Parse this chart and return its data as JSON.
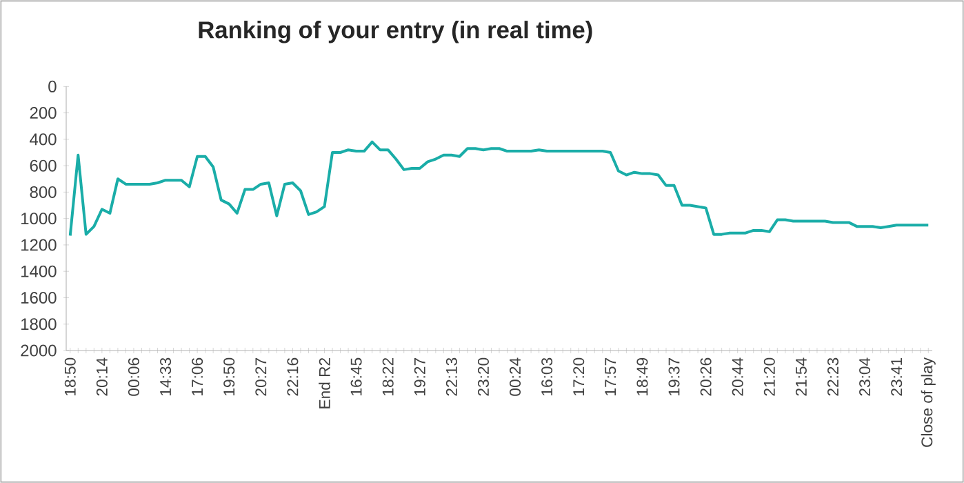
{
  "chart_data": {
    "type": "line",
    "title": "Ranking of your entry (in real time)",
    "categories": [
      "18:50",
      null,
      null,
      null,
      "20:14",
      null,
      null,
      null,
      "00:06",
      null,
      null,
      null,
      "14:33",
      null,
      null,
      null,
      "17:06",
      null,
      null,
      null,
      "19:50",
      null,
      null,
      null,
      "20:27",
      null,
      null,
      null,
      "22:16",
      null,
      null,
      null,
      "End R2",
      null,
      null,
      null,
      "16:45",
      null,
      null,
      null,
      "18:22",
      null,
      null,
      null,
      "19:27",
      null,
      null,
      null,
      "22:13",
      null,
      null,
      null,
      "23:20",
      null,
      null,
      null,
      "00:24",
      null,
      null,
      null,
      "16:03",
      null,
      null,
      null,
      "17:20",
      null,
      null,
      null,
      "17:57",
      null,
      null,
      null,
      "18:49",
      null,
      null,
      null,
      "19:37",
      null,
      null,
      null,
      "20:26",
      null,
      null,
      null,
      "20:44",
      null,
      null,
      null,
      "21:20",
      null,
      null,
      null,
      "21:54",
      null,
      null,
      null,
      "22:23",
      null,
      null,
      null,
      "23:04",
      null,
      null,
      null,
      "23:41",
      null,
      null,
      null,
      "Close of play"
    ],
    "series": [
      {
        "color": "#1aada8",
        "values": [
          1130,
          520,
          1120,
          1060,
          930,
          960,
          700,
          740,
          740,
          740,
          740,
          730,
          710,
          710,
          710,
          760,
          530,
          530,
          610,
          860,
          890,
          960,
          780,
          780,
          740,
          730,
          980,
          740,
          730,
          790,
          970,
          950,
          910,
          500,
          500,
          480,
          490,
          490,
          420,
          480,
          480,
          550,
          630,
          620,
          620,
          570,
          550,
          520,
          520,
          530,
          470,
          470,
          480,
          470,
          470,
          490,
          490,
          490,
          490,
          480,
          490,
          490,
          490,
          490,
          490,
          490,
          490,
          490,
          500,
          640,
          670,
          650,
          660,
          660,
          670,
          750,
          750,
          900,
          900,
          910,
          920,
          1120,
          1120,
          1110,
          1110,
          1110,
          1090,
          1090,
          1100,
          1010,
          1010,
          1020,
          1020,
          1020,
          1020,
          1020,
          1030,
          1030,
          1030,
          1060,
          1060,
          1060,
          1070,
          1060,
          1050,
          1050,
          1050,
          1050,
          1050
        ]
      }
    ],
    "ylim": [
      2000,
      0
    ],
    "yticks": [
      0,
      200,
      400,
      600,
      800,
      1000,
      1200,
      1400,
      1600,
      1800,
      2000
    ],
    "grid": false,
    "marker": "none",
    "line_style": "solid"
  }
}
